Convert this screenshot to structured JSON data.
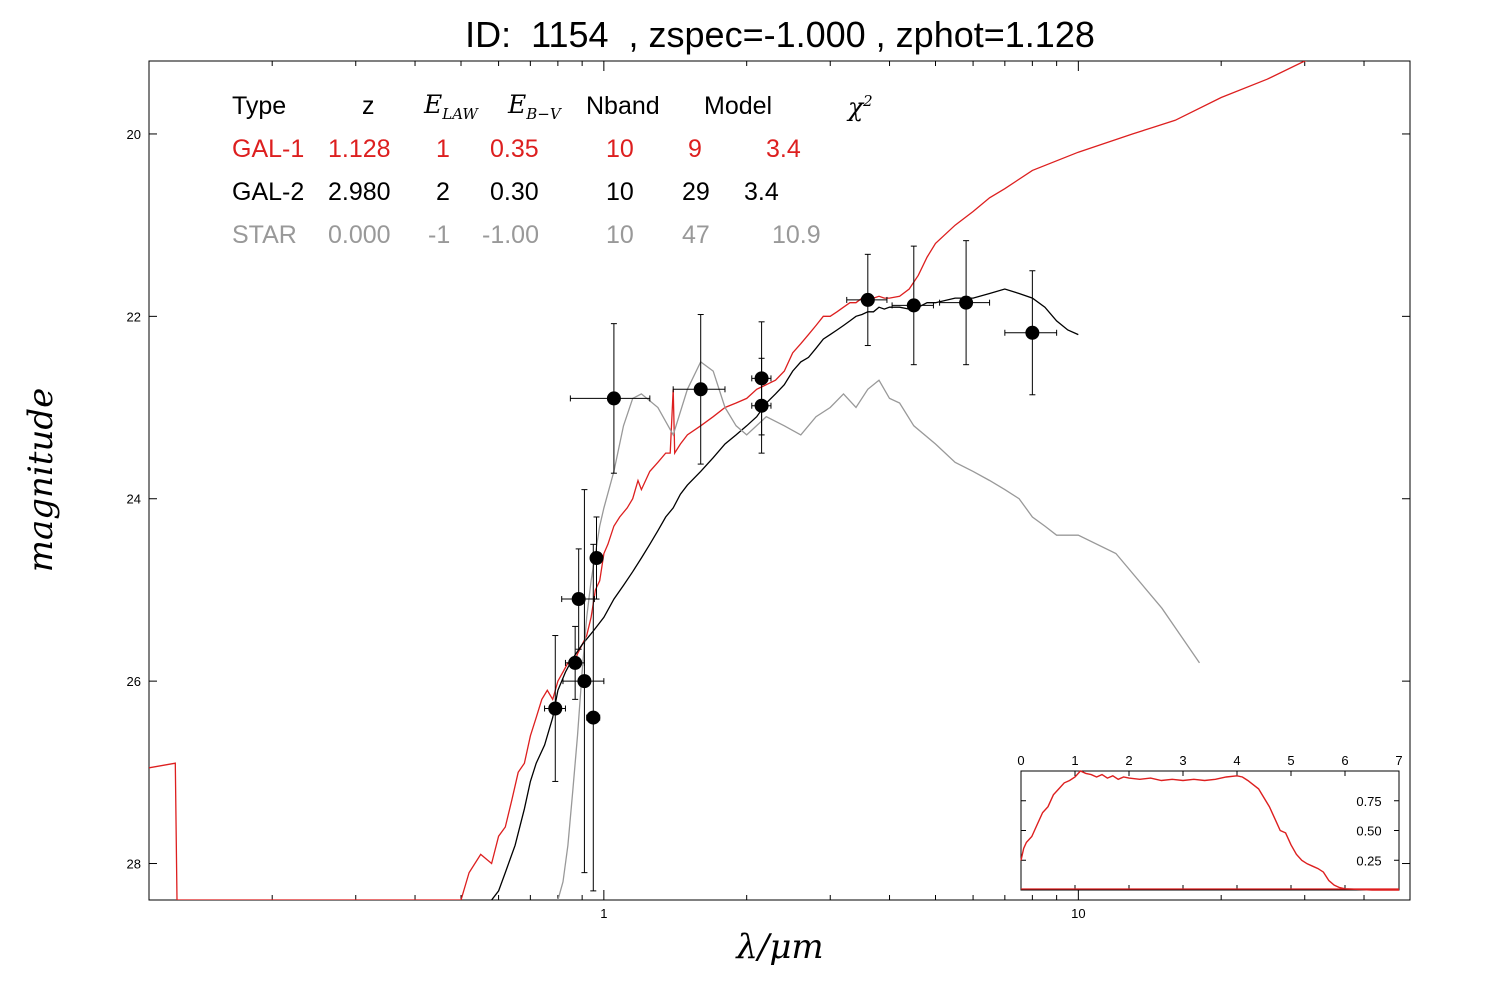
{
  "title": "ID:  1154  , zspec=-1.000 , zphot=1.128",
  "colors": {
    "gal1": "#dd1f1f",
    "gal2": "#000000",
    "star": "#999999",
    "points": "#000000",
    "pdz": "#dd1f1f"
  },
  "fit_table": {
    "headers": {
      "type": "Type",
      "z": "z",
      "elaw_main": "E",
      "elaw_sub": "LAW",
      "ebv_main": "E",
      "ebv_sub": "B−V",
      "nband": "Nband",
      "model": "Model",
      "chi_main": "χ",
      "chi_sup": "2"
    },
    "rows": [
      {
        "type": "GAL-1",
        "z": "1.128",
        "elaw": "1",
        "ebv": "0.35",
        "nband": "10",
        "model": "9",
        "chi2": "3.4",
        "color": "#dd1f1f"
      },
      {
        "type": "GAL-2",
        "z": "2.980",
        "elaw": "2",
        "ebv": "0.30",
        "nband": "10",
        "model": "29",
        "chi2": "3.4",
        "color": "#000000"
      },
      {
        "type": "STAR",
        "z": "0.000",
        "elaw": "-1",
        "ebv": "-1.00",
        "nband": "10",
        "model": "47",
        "chi2": "10.9",
        "color": "#999999"
      }
    ]
  },
  "chart_data": [
    {
      "type": "line",
      "xlabel": "λ/μm",
      "ylabel": "magnitude",
      "xscale": "log",
      "yaxis_inverted": true,
      "xlim": [
        0.11,
        50
      ],
      "ylim": [
        28.4,
        19.2
      ],
      "x_tick_labels": [
        "1",
        "10"
      ],
      "y_tick_labels": [
        "20",
        "22",
        "24",
        "26",
        "28"
      ],
      "y_ticks": [
        20,
        22,
        24,
        26,
        28
      ],
      "points": [
        {
          "x": 0.79,
          "y": 26.3,
          "xerr_lo": 0.04,
          "xerr_hi": 0.04,
          "yerr": 0.8
        },
        {
          "x": 0.87,
          "y": 25.8,
          "xerr_lo": 0.04,
          "xerr_hi": 0.04,
          "yerr": 0.4
        },
        {
          "x": 0.885,
          "y": 25.1,
          "xerr_lo": 0.07,
          "xerr_hi": 0.07,
          "yerr": 0.55
        },
        {
          "x": 0.91,
          "y": 26.0,
          "xerr_lo": 0.09,
          "xerr_hi": 0.09,
          "yerr": 2.1
        },
        {
          "x": 0.95,
          "y": 26.4,
          "xerr_lo": 0.03,
          "xerr_hi": 0.03,
          "yerr": 1.9
        },
        {
          "x": 0.965,
          "y": 24.65,
          "xerr_lo": 0.02,
          "xerr_hi": 0.02,
          "yerr": 0.45
        },
        {
          "x": 1.05,
          "y": 22.9,
          "xerr_lo": 0.2,
          "xerr_hi": 0.2,
          "yerr": 0.82
        },
        {
          "x": 1.6,
          "y": 22.8,
          "xerr_lo": 0.2,
          "xerr_hi": 0.2,
          "yerr": 0.82
        },
        {
          "x": 2.15,
          "y": 22.68,
          "xerr_lo": 0.1,
          "xerr_hi": 0.1,
          "yerr": 0.62
        },
        {
          "x": 2.15,
          "y": 22.98,
          "xerr_lo": 0.1,
          "xerr_hi": 0.1,
          "yerr": 0.52
        },
        {
          "x": 3.6,
          "y": 21.82,
          "xerr_lo": 0.35,
          "xerr_hi": 0.35,
          "yerr": 0.5
        },
        {
          "x": 4.5,
          "y": 21.88,
          "xerr_lo": 0.45,
          "xerr_hi": 0.45,
          "yerr": 0.65
        },
        {
          "x": 5.8,
          "y": 21.85,
          "xerr_lo": 0.7,
          "xerr_hi": 0.7,
          "yerr": 0.68
        },
        {
          "x": 8.0,
          "y": 22.18,
          "xerr_lo": 1.0,
          "xerr_hi": 1.0,
          "yerr": 0.68
        }
      ],
      "series": [
        {
          "name": "GAL-1",
          "color": "#dd1f1f",
          "x": [
            0.11,
            0.125,
            0.126,
            0.5,
            0.52,
            0.55,
            0.58,
            0.6,
            0.62,
            0.64,
            0.66,
            0.68,
            0.7,
            0.72,
            0.74,
            0.76,
            0.78,
            0.8,
            0.82,
            0.84,
            0.86,
            0.88,
            0.9,
            0.92,
            0.94,
            0.96,
            0.98,
            1.0,
            1.02,
            1.05,
            1.08,
            1.12,
            1.15,
            1.18,
            1.2,
            1.25,
            1.3,
            1.35,
            1.38,
            1.4,
            1.41,
            1.45,
            1.5,
            1.6,
            1.7,
            1.8,
            1.9,
            2.0,
            2.1,
            2.2,
            2.3,
            2.4,
            2.5,
            2.6,
            2.7,
            2.8,
            2.9,
            3.0,
            3.1,
            3.2,
            3.3,
            3.4,
            3.5,
            3.6,
            3.7,
            3.8,
            3.9,
            4.0,
            4.2,
            4.4,
            4.6,
            4.8,
            5.0,
            5.5,
            6.0,
            6.5,
            7.0,
            8.0,
            10,
            13,
            16,
            20,
            25,
            30,
            40
          ],
          "y": [
            26.95,
            26.9,
            28.4,
            28.4,
            28.1,
            27.9,
            28.0,
            27.7,
            27.6,
            27.3,
            27.0,
            26.9,
            26.6,
            26.4,
            26.2,
            26.1,
            26.2,
            26.0,
            25.9,
            25.8,
            25.85,
            25.7,
            25.6,
            25.5,
            25.3,
            25.0,
            24.9,
            24.6,
            24.5,
            24.3,
            24.2,
            24.1,
            24.0,
            23.8,
            23.9,
            23.7,
            23.6,
            23.5,
            23.5,
            22.8,
            23.5,
            23.4,
            23.3,
            23.2,
            23.1,
            23.0,
            22.95,
            22.9,
            22.8,
            22.75,
            22.7,
            22.6,
            22.4,
            22.3,
            22.2,
            22.1,
            22.0,
            22.0,
            21.95,
            21.9,
            21.85,
            21.85,
            21.8,
            21.75,
            21.8,
            21.78,
            21.8,
            21.8,
            21.78,
            21.7,
            21.55,
            21.35,
            21.2,
            21.0,
            20.85,
            20.7,
            20.6,
            20.4,
            20.2,
            20.0,
            19.85,
            19.6,
            19.4,
            19.2,
            19.0
          ]
        },
        {
          "name": "GAL-2",
          "color": "#000000",
          "x": [
            0.58,
            0.6,
            0.62,
            0.65,
            0.68,
            0.7,
            0.72,
            0.75,
            0.78,
            0.8,
            0.83,
            0.86,
            0.9,
            0.95,
            1.0,
            1.05,
            1.1,
            1.15,
            1.2,
            1.25,
            1.3,
            1.35,
            1.4,
            1.45,
            1.5,
            1.6,
            1.7,
            1.8,
            1.9,
            2.0,
            2.1,
            2.2,
            2.3,
            2.4,
            2.5,
            2.6,
            2.7,
            2.8,
            2.9,
            3.0,
            3.1,
            3.2,
            3.3,
            3.4,
            3.5,
            3.6,
            3.7,
            3.8,
            3.9,
            4.0,
            4.2,
            4.4,
            4.6,
            4.8,
            5.0,
            5.5,
            6.0,
            6.5,
            7.0,
            7.5,
            8.0,
            8.5,
            9.0,
            9.5,
            10.0
          ],
          "y": [
            28.4,
            28.3,
            28.1,
            27.8,
            27.4,
            27.1,
            26.9,
            26.7,
            26.4,
            26.1,
            25.9,
            25.75,
            25.6,
            25.45,
            25.3,
            25.1,
            24.95,
            24.8,
            24.65,
            24.5,
            24.35,
            24.2,
            24.1,
            23.95,
            23.85,
            23.7,
            23.55,
            23.4,
            23.3,
            23.2,
            23.1,
            22.95,
            22.85,
            22.75,
            22.6,
            22.5,
            22.45,
            22.35,
            22.25,
            22.2,
            22.15,
            22.1,
            22.05,
            22.0,
            21.98,
            21.95,
            21.95,
            21.9,
            21.92,
            21.9,
            21.9,
            21.92,
            21.9,
            21.85,
            21.85,
            21.8,
            21.8,
            21.75,
            21.7,
            21.75,
            21.8,
            21.9,
            22.05,
            22.15,
            22.2
          ]
        },
        {
          "name": "STAR",
          "color": "#999999",
          "x": [
            0.8,
            0.82,
            0.84,
            0.86,
            0.88,
            0.9,
            0.92,
            0.94,
            0.96,
            0.98,
            1.0,
            1.05,
            1.1,
            1.15,
            1.2,
            1.3,
            1.4,
            1.5,
            1.6,
            1.7,
            1.8,
            1.9,
            2.0,
            2.2,
            2.4,
            2.6,
            2.8,
            3.0,
            3.2,
            3.4,
            3.6,
            3.8,
            4.0,
            4.2,
            4.5,
            5.0,
            5.5,
            6.0,
            6.5,
            7.0,
            7.5,
            8.0,
            8.5,
            9.0,
            10.0,
            12.0,
            15.0,
            18.0
          ],
          "y": [
            28.4,
            28.2,
            27.8,
            27.2,
            26.6,
            25.9,
            25.3,
            24.9,
            24.6,
            24.3,
            24.1,
            23.7,
            23.2,
            22.9,
            22.85,
            23.0,
            23.3,
            22.8,
            22.5,
            22.6,
            23.0,
            23.2,
            23.3,
            23.1,
            23.2,
            23.3,
            23.1,
            23.0,
            22.85,
            23.0,
            22.8,
            22.7,
            22.9,
            22.95,
            23.2,
            23.4,
            23.6,
            23.7,
            23.8,
            23.9,
            24.0,
            24.2,
            24.3,
            24.4,
            24.4,
            24.6,
            25.2,
            25.8
          ]
        }
      ]
    },
    {
      "type": "line",
      "xlim": [
        0,
        7
      ],
      "ylim": [
        0,
        1.0
      ],
      "x_ticks": [
        0,
        1,
        2,
        3,
        4,
        5,
        6,
        7
      ],
      "x_tick_labels": [
        "0",
        "1",
        "2",
        "3",
        "4",
        "5",
        "6",
        "7"
      ],
      "y_ticks": [
        0.25,
        0.5,
        0.75
      ],
      "y_tick_labels": [
        "0.25",
        "0.50",
        "0.75"
      ],
      "series": [
        {
          "color": "#dd1f1f",
          "x": [
            0.0,
            0.05,
            0.1,
            0.2,
            0.3,
            0.4,
            0.5,
            0.6,
            0.7,
            0.8,
            0.9,
            1.0,
            1.1,
            1.2,
            1.3,
            1.4,
            1.5,
            1.6,
            1.7,
            1.8,
            1.9,
            2.0,
            2.2,
            2.4,
            2.6,
            2.8,
            3.0,
            3.2,
            3.4,
            3.6,
            3.8,
            4.0,
            4.1,
            4.2,
            4.4,
            4.6,
            4.7,
            4.8,
            4.9,
            5.0,
            5.1,
            5.2,
            5.3,
            5.4,
            5.5,
            5.6,
            5.7,
            5.8,
            5.9,
            6.0,
            6.5,
            7.0
          ],
          "y": [
            0.25,
            0.35,
            0.4,
            0.45,
            0.55,
            0.65,
            0.7,
            0.8,
            0.85,
            0.9,
            0.92,
            0.95,
            1.0,
            0.98,
            0.97,
            0.95,
            0.97,
            0.94,
            0.96,
            0.93,
            0.95,
            0.94,
            0.93,
            0.94,
            0.92,
            0.93,
            0.92,
            0.93,
            0.92,
            0.93,
            0.95,
            0.96,
            0.95,
            0.92,
            0.85,
            0.7,
            0.6,
            0.5,
            0.48,
            0.38,
            0.3,
            0.25,
            0.22,
            0.2,
            0.18,
            0.15,
            0.08,
            0.04,
            0.02,
            0.01,
            0.0,
            0.0
          ]
        }
      ]
    }
  ]
}
